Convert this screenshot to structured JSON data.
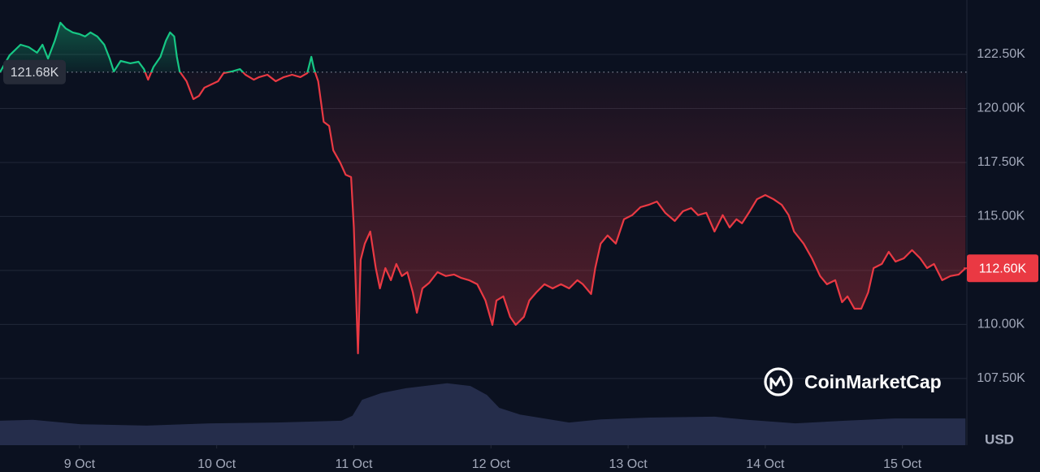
{
  "chart_data": {
    "type": "line",
    "xlim": [
      8.42,
      15.47
    ],
    "xticks": [
      {
        "value": 9,
        "label": "9 Oct"
      },
      {
        "value": 10,
        "label": "10 Oct"
      },
      {
        "value": 11,
        "label": "11 Oct"
      },
      {
        "value": 12,
        "label": "12 Oct"
      },
      {
        "value": 13,
        "label": "13 Oct"
      },
      {
        "value": 14,
        "label": "14 Oct"
      },
      {
        "value": 15,
        "label": "15 Oct"
      }
    ],
    "ylim": [
      104410,
      125020
    ],
    "yticks": [
      {
        "value": 107500,
        "label": "107.50K"
      },
      {
        "value": 110000,
        "label": "110.00K"
      },
      {
        "value": 112500,
        "label": "112.50K"
      },
      {
        "value": 115000,
        "label": "115.00K"
      },
      {
        "value": 117500,
        "label": "117.50K"
      },
      {
        "value": 120000,
        "label": "120.00K"
      },
      {
        "value": 122500,
        "label": "122.50K"
      }
    ],
    "grid": true,
    "baseline": {
      "value": 121680,
      "label": "121.68K"
    },
    "last": {
      "value": 112600,
      "label": "112.60K"
    },
    "up_color": "#16c784",
    "down_color": "#ea3943",
    "currency": "USD",
    "watermark": "CoinMarketCap",
    "series": [
      {
        "x": [
          8.42,
          8.49,
          8.57,
          8.63,
          8.69,
          8.73,
          8.77,
          8.82,
          8.86,
          8.9,
          8.95,
          9.0,
          9.04,
          9.08,
          9.13,
          9.18,
          9.22,
          9.25,
          9.3,
          9.37,
          9.43,
          9.47,
          9.5,
          9.54,
          9.59,
          9.63,
          9.66,
          9.69,
          9.71,
          9.73,
          9.78,
          9.83,
          9.87,
          9.91,
          9.96,
          10.01,
          10.05,
          10.11,
          10.17,
          10.21,
          10.27,
          10.31,
          10.37,
          10.43,
          10.49,
          10.55,
          10.61,
          10.66,
          10.69,
          10.71,
          10.74,
          10.78,
          10.82,
          10.85,
          10.9,
          10.94,
          10.98,
          11.0,
          11.03,
          11.05,
          11.08,
          11.12,
          11.16,
          11.19,
          11.23,
          11.27,
          11.31,
          11.35,
          11.39,
          11.43,
          11.46,
          11.5,
          11.55,
          11.61,
          11.67,
          11.73,
          11.78,
          11.84,
          11.9,
          11.96,
          12.01,
          12.04,
          12.09,
          12.14,
          12.18,
          12.24,
          12.28,
          12.33,
          12.39,
          12.45,
          12.51,
          12.57,
          12.63,
          12.67,
          12.73,
          12.76,
          12.8,
          12.85,
          12.91,
          12.97,
          13.03,
          13.09,
          13.15,
          13.21,
          13.27,
          13.34,
          13.4,
          13.46,
          13.51,
          13.57,
          13.63,
          13.69,
          13.74,
          13.79,
          13.83,
          13.88,
          13.94,
          14.0,
          14.06,
          14.12,
          14.17,
          14.21,
          14.28,
          14.34,
          14.4,
          14.45,
          14.51,
          14.56,
          14.6,
          14.65,
          14.7,
          14.75,
          14.79,
          14.85,
          14.9,
          14.95,
          15.01,
          15.07,
          15.13,
          15.18,
          15.23,
          15.29,
          15.35,
          15.41,
          15.46
        ],
        "values": [
          121680,
          122460,
          122950,
          122840,
          122580,
          122950,
          122310,
          123140,
          123970,
          123700,
          123520,
          123440,
          123330,
          123520,
          123330,
          122950,
          122310,
          121710,
          122200,
          122090,
          122160,
          121820,
          121330,
          121930,
          122390,
          123140,
          123520,
          123330,
          122390,
          121710,
          121260,
          120430,
          120580,
          120960,
          121110,
          121260,
          121630,
          121710,
          121820,
          121560,
          121330,
          121450,
          121560,
          121260,
          121450,
          121560,
          121450,
          121630,
          122390,
          121820,
          121260,
          119380,
          119190,
          118060,
          117500,
          116930,
          116820,
          114490,
          108660,
          112990,
          113740,
          114300,
          112610,
          111670,
          112610,
          112050,
          112800,
          112240,
          112420,
          111480,
          110540,
          111670,
          111930,
          112420,
          112240,
          112310,
          112160,
          112050,
          111860,
          111110,
          109980,
          111110,
          111300,
          110350,
          109980,
          110350,
          111110,
          111480,
          111860,
          111670,
          111860,
          111670,
          112050,
          111860,
          111410,
          112610,
          113740,
          114120,
          113740,
          114870,
          115060,
          115430,
          115540,
          115690,
          115170,
          114790,
          115240,
          115390,
          115060,
          115170,
          114300,
          115060,
          114490,
          114870,
          114680,
          115170,
          115800,
          115990,
          115800,
          115540,
          115060,
          114300,
          113740,
          113060,
          112240,
          111860,
          112050,
          111030,
          111300,
          110730,
          110730,
          111480,
          112610,
          112800,
          113360,
          112910,
          113060,
          113440,
          113060,
          112610,
          112800,
          112050,
          112240,
          112310,
          112600
        ]
      }
    ],
    "y2lim": [
      0,
      100
    ],
    "volume": {
      "color": "#2a3354",
      "x": [
        8.42,
        8.66,
        9.01,
        9.49,
        9.96,
        10.43,
        10.91,
        10.99,
        11.06,
        11.2,
        11.38,
        11.68,
        11.85,
        11.97,
        12.06,
        12.21,
        12.57,
        12.8,
        13.16,
        13.63,
        13.87,
        14.22,
        14.58,
        14.94,
        15.46
      ],
      "values": [
        5.5,
        5.7,
        4.7,
        4.4,
        4.9,
        5.1,
        5.5,
        6.6,
        10.2,
        11.7,
        12.8,
        13.9,
        13.3,
        11.3,
        8.4,
        6.9,
        5.1,
        5.8,
        6.2,
        6.4,
        5.7,
        4.9,
        5.5,
        6.0,
        6.0
      ]
    }
  }
}
